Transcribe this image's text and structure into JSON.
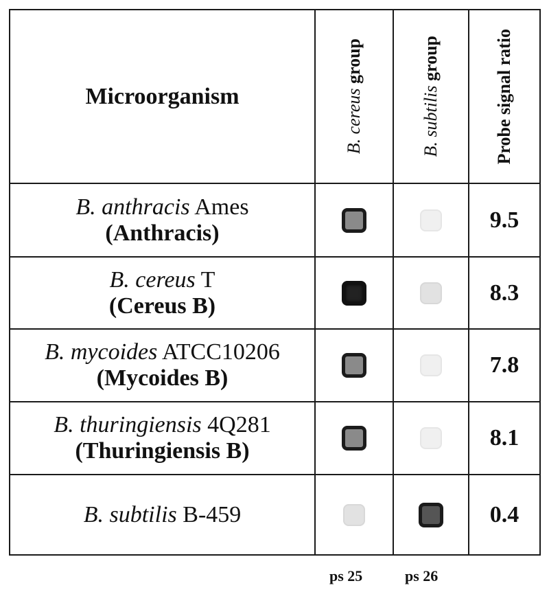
{
  "header": {
    "col_organism": "Microorganism",
    "col_group1_italic": "B. cereus",
    "col_group1_suffix": "group",
    "col_group2_italic": "B. subtilis",
    "col_group2_suffix": "group",
    "col_ratio": "Probe signal ratio"
  },
  "rows": [
    {
      "species": "B. anthracis",
      "strain_id": "Ames",
      "label": "(Anthracis)",
      "ratio": "9.5",
      "cereus_signal": "strong",
      "subtilis_signal": "faint"
    },
    {
      "species": "B. cereus",
      "strain_id": "T",
      "label": "(Cereus B)",
      "ratio": "8.3",
      "cereus_signal": "very strong",
      "subtilis_signal": "faint"
    },
    {
      "species": "B. mycoides",
      "strain_id": "ATCC10206",
      "label": "(Mycoides B)",
      "ratio": "7.8",
      "cereus_signal": "strong",
      "subtilis_signal": "faint"
    },
    {
      "species": "B. thuringiensis",
      "strain_id": "4Q281",
      "label": "(Thuringiensis B)",
      "ratio": "8.1",
      "cereus_signal": "strong",
      "subtilis_signal": "faint"
    },
    {
      "species": "B. subtilis",
      "strain_id": "B-459",
      "label": "",
      "ratio": "0.4",
      "cereus_signal": "faint",
      "subtilis_signal": "strong"
    }
  ],
  "footer": {
    "probe1": "ps 25",
    "probe2": "ps 26"
  }
}
